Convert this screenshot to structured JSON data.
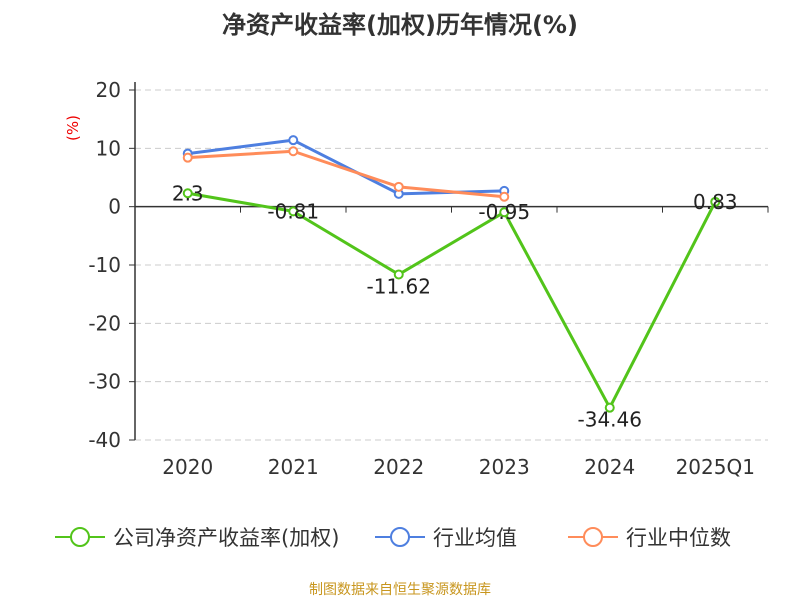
{
  "chart_data": {
    "type": "line",
    "title": "净资产收益率(加权)历年情况(%)",
    "ylabel": "(%)",
    "xlabel": "",
    "ylim": [
      -40,
      20
    ],
    "yticks": [
      "20",
      "10",
      "0",
      "-10",
      "-20",
      "-30",
      "-40"
    ],
    "ytick_values": [
      20,
      10,
      0,
      -10,
      -20,
      -30,
      -40
    ],
    "categories": [
      "2020",
      "2021",
      "2022",
      "2023",
      "2024",
      "2025Q1"
    ],
    "grid": true,
    "legend_position": "bottom",
    "series": [
      {
        "name": "公司净资产收益率(加权)",
        "color": "#52c41a",
        "values": [
          2.3,
          -0.81,
          -11.62,
          -0.95,
          -34.46,
          0.83
        ],
        "labels": [
          "2.3",
          "-0.81",
          "-11.62",
          "-0.95",
          "-34.46",
          "0.83"
        ]
      },
      {
        "name": "行业均值",
        "color": "#4e7fe0",
        "values": [
          9.1,
          11.4,
          2.2,
          2.7,
          null,
          null
        ]
      },
      {
        "name": "行业中位数",
        "color": "#ff8c5a",
        "values": [
          8.4,
          9.5,
          3.4,
          1.7,
          null,
          null
        ]
      }
    ]
  },
  "footer": {
    "source": "制图数据来自恒生聚源数据库"
  }
}
